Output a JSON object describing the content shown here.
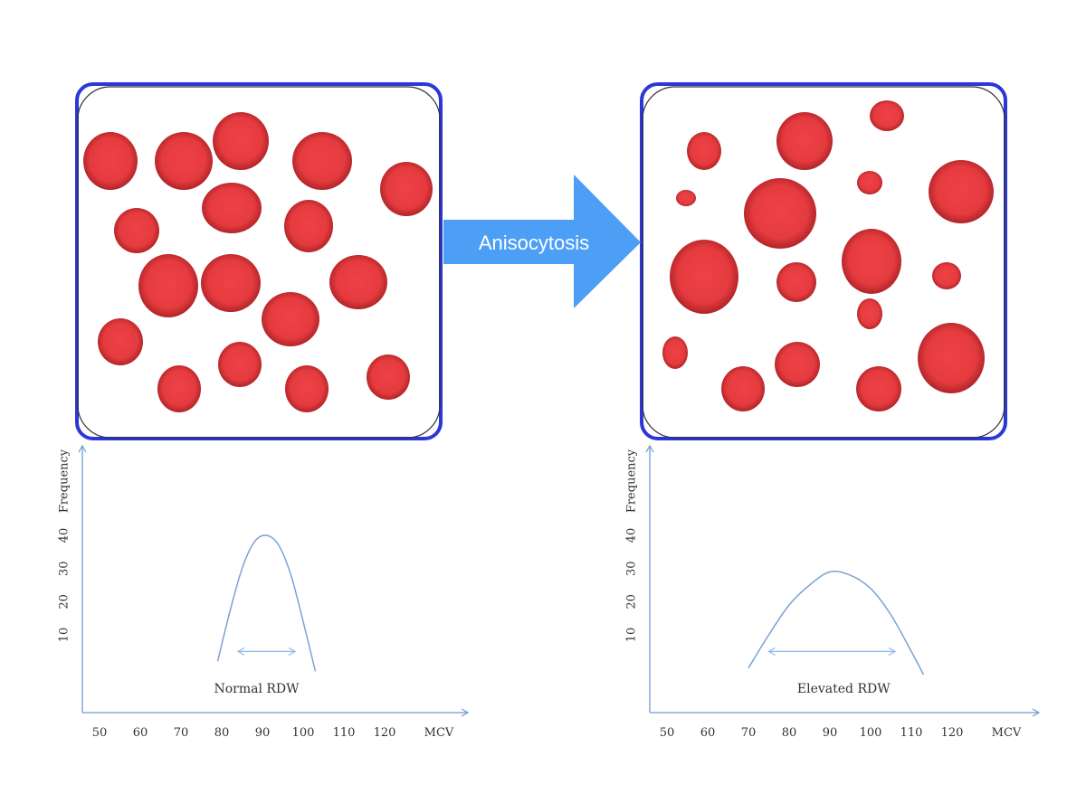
{
  "colors": {
    "cell_fill": "#e53b3f",
    "cell_edge": "#b3262b",
    "panel_border": "#2b37d6",
    "panel_inner": "#333333",
    "arrow": "#4d9ff5",
    "axis": "#6f9bd1",
    "curve": "#7aa3d3",
    "width_arrow": "#8fb7e8",
    "text": "#333333",
    "arrow_text": "#ffffff"
  },
  "arrow": {
    "label": "Anisocytosis"
  },
  "chart_data": [
    {
      "type": "line",
      "panel": "left",
      "xlabel": "MCV",
      "ylabel": "Frequency",
      "x_ticks": [
        50,
        60,
        70,
        80,
        90,
        100,
        110,
        120
      ],
      "y_ticks": [
        10,
        20,
        30,
        40
      ],
      "xlim": [
        45,
        130
      ],
      "ylim": [
        -12,
        52
      ],
      "series": [
        {
          "x": [
            79,
            82,
            85,
            88,
            91,
            94,
            97,
            100,
            103
          ],
          "y": [
            2,
            17,
            30,
            38,
            40,
            37,
            28,
            14,
            -1
          ]
        }
      ],
      "width_marker": {
        "x_start": 84,
        "x_end": 98,
        "y": 5
      },
      "annotation": "Normal RDW"
    },
    {
      "type": "line",
      "panel": "right",
      "xlabel": "MCV",
      "ylabel": "Frequency",
      "x_ticks": [
        50,
        60,
        70,
        80,
        90,
        100,
        110,
        120
      ],
      "y_ticks": [
        10,
        20,
        30,
        40
      ],
      "xlim": [
        45,
        130
      ],
      "ylim": [
        -12,
        52
      ],
      "series": [
        {
          "x": [
            70,
            75,
            80,
            85,
            90,
            95,
            100,
            105,
            110,
            113
          ],
          "y": [
            0,
            10,
            19,
            25,
            29,
            28,
            24,
            16,
            5,
            -2
          ]
        }
      ],
      "width_marker": {
        "x_start": 75,
        "x_end": 106,
        "y": 5
      },
      "annotation": "Elevated RDW"
    }
  ]
}
